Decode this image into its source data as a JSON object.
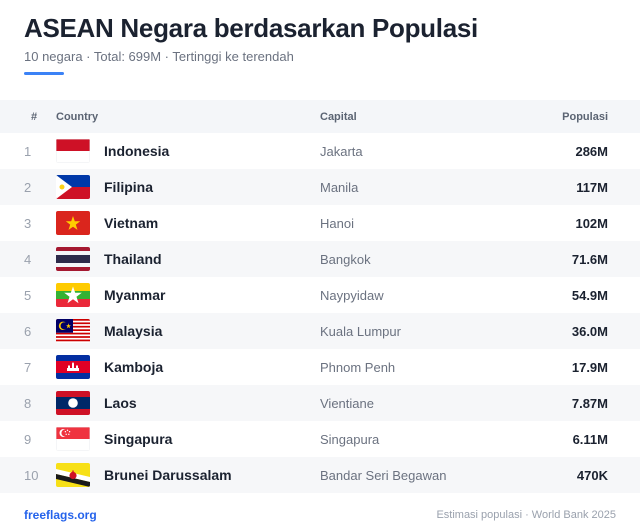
{
  "header": {
    "title": "ASEAN Negara berdasarkan Populasi",
    "subtitle": "10 negara · Total: 699M · Tertinggi ke terendah"
  },
  "columns": {
    "num": "#",
    "country": "Country",
    "capital": "Capital",
    "population": "Populasi"
  },
  "rows": [
    {
      "rank": "1",
      "flag": "indonesia-flag",
      "country": "Indonesia",
      "capital": "Jakarta",
      "population": "286M"
    },
    {
      "rank": "2",
      "flag": "philippines-flag",
      "country": "Filipina",
      "capital": "Manila",
      "population": "117M"
    },
    {
      "rank": "3",
      "flag": "vietnam-flag",
      "country": "Vietnam",
      "capital": "Hanoi",
      "population": "102M"
    },
    {
      "rank": "4",
      "flag": "thailand-flag",
      "country": "Thailand",
      "capital": "Bangkok",
      "population": "71.6M"
    },
    {
      "rank": "5",
      "flag": "myanmar-flag",
      "country": "Myanmar",
      "capital": "Naypyidaw",
      "population": "54.9M"
    },
    {
      "rank": "6",
      "flag": "malaysia-flag",
      "country": "Malaysia",
      "capital": "Kuala Lumpur",
      "population": "36.0M"
    },
    {
      "rank": "7",
      "flag": "cambodia-flag",
      "country": "Kamboja",
      "capital": "Phnom Penh",
      "population": "17.9M"
    },
    {
      "rank": "8",
      "flag": "laos-flag",
      "country": "Laos",
      "capital": "Vientiane",
      "population": "7.87M"
    },
    {
      "rank": "9",
      "flag": "singapore-flag",
      "country": "Singapura",
      "capital": "Singapura",
      "population": "6.11M"
    },
    {
      "rank": "10",
      "flag": "brunei-flag",
      "country": "Brunei Darussalam",
      "capital": "Bandar Seri Begawan",
      "population": "470K"
    }
  ],
  "footer": {
    "link": "freeflags.org",
    "source": "Estimasi populasi · World Bank 2025"
  },
  "colors": {
    "accent": "#3b82f6",
    "link": "#2563eb"
  }
}
